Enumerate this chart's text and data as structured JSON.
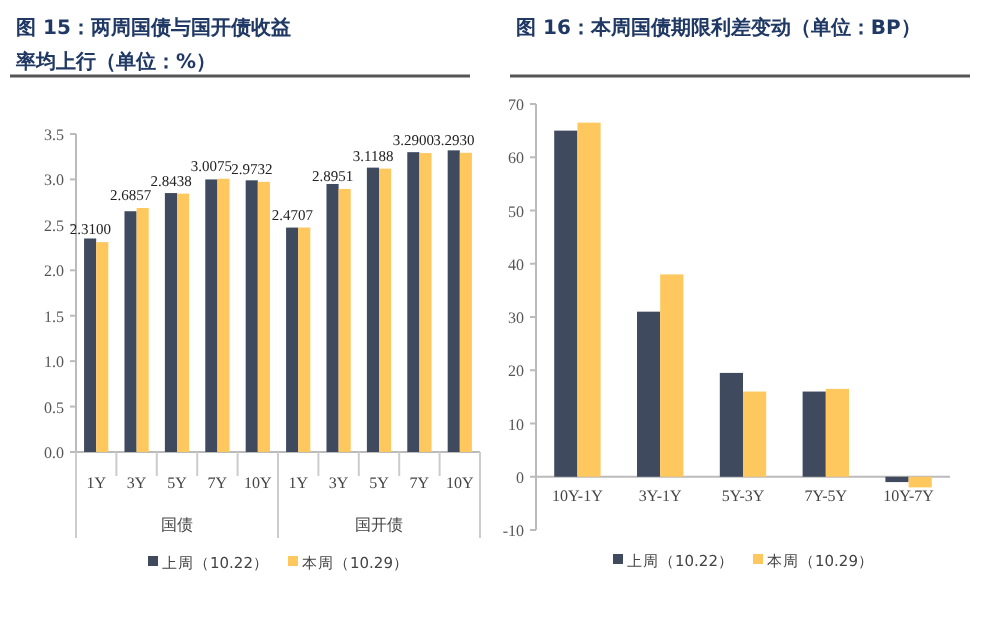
{
  "chart_data": [
    {
      "type": "bar",
      "title": "图 15：两周国债与国开债收益率均上行（单位：%）",
      "categories": [
        "1Y",
        "3Y",
        "5Y",
        "7Y",
        "10Y",
        "1Y",
        "3Y",
        "5Y",
        "7Y",
        "10Y"
      ],
      "annotations": [
        "国债",
        "国开债"
      ],
      "series": [
        {
          "name": "上周（10.22）",
          "color": "#3f4a5e",
          "values": [
            2.35,
            2.65,
            2.85,
            3.0,
            2.99,
            2.47,
            2.95,
            3.13,
            3.3,
            3.32
          ]
        },
        {
          "name": "本周（10.29）",
          "color": "#ffc85e",
          "values": [
            2.31,
            2.6857,
            2.8438,
            3.0075,
            2.9732,
            2.4707,
            2.8951,
            3.1188,
            3.29,
            3.293
          ],
          "value_labels": [
            "2.3100",
            "2.6857",
            "2.8438",
            "3.0075",
            "2.9732",
            "2.4707",
            "2.8951",
            "3.1188",
            "3.2900",
            "3.2930"
          ]
        }
      ],
      "ylim": [
        0,
        3.5
      ],
      "yticks": [
        {
          "value": 0,
          "label": "0.0"
        },
        {
          "value": 0.5,
          "label": "0.5"
        },
        {
          "value": 1,
          "label": "1.0"
        },
        {
          "value": 1.5,
          "label": "1.5"
        },
        {
          "value": 2,
          "label": "2.0"
        },
        {
          "value": 2.5,
          "label": "2.5"
        },
        {
          "value": 3,
          "label": "3.0"
        },
        {
          "value": 3.5,
          "label": "3.5"
        }
      ],
      "grid": false,
      "legend": "bottom"
    },
    {
      "type": "bar",
      "title": "图 16：本周国债期限利差变动（单位：BP）",
      "categories": [
        "10Y-1Y",
        "3Y-1Y",
        "5Y-3Y",
        "7Y-5Y",
        "10Y-7Y"
      ],
      "series": [
        {
          "name": "上周（10.22）",
          "color": "#3f4a5e",
          "values": [
            65,
            31,
            19.5,
            16,
            -1
          ]
        },
        {
          "name": "本周（10.29）",
          "color": "#ffc85e",
          "values": [
            66.5,
            38,
            16,
            16.5,
            -2
          ]
        }
      ],
      "ylim": [
        -10,
        70
      ],
      "yticks": [
        -10,
        0,
        10,
        20,
        30,
        40,
        50,
        60,
        70
      ],
      "grid": false,
      "legend": "bottom"
    }
  ]
}
